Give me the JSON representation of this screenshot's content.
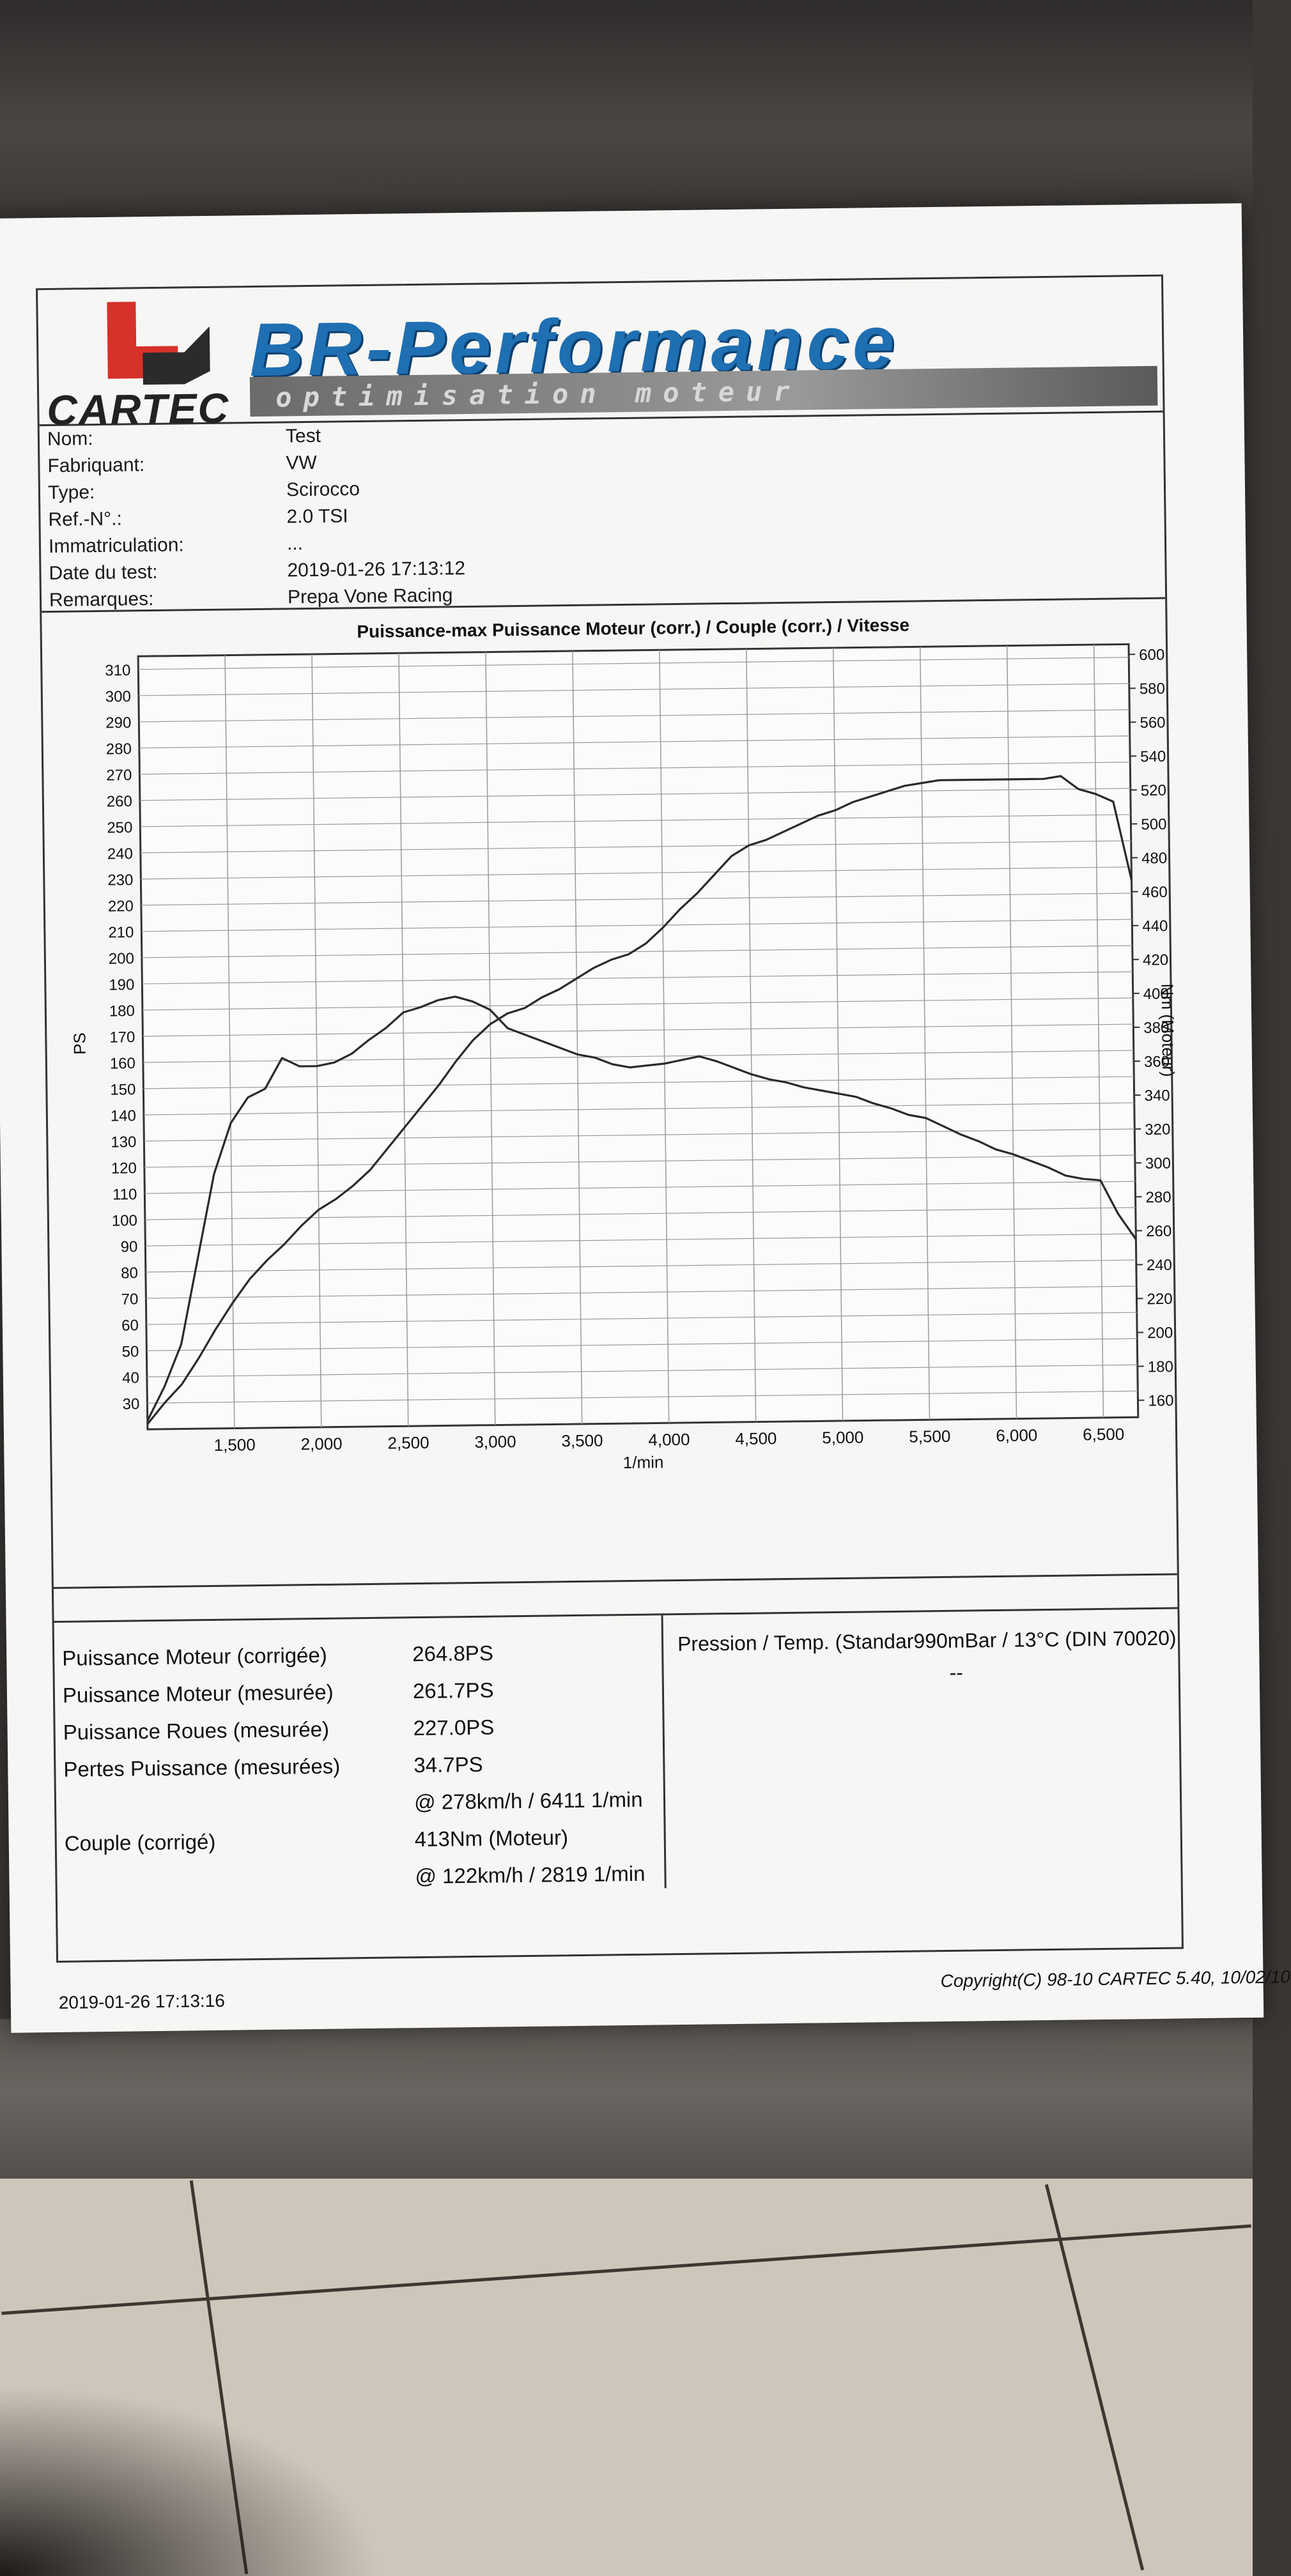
{
  "header": {
    "brand_left": "CARTEC",
    "brand_banner": "BR-Performance",
    "brand_sub": "optimisation moteur"
  },
  "info": [
    {
      "label": "Nom:",
      "value": "Test"
    },
    {
      "label": "Fabriquant:",
      "value": "VW"
    },
    {
      "label": "Type:",
      "value": "Scirocco"
    },
    {
      "label": "Ref.-N°.:",
      "value": "2.0 TSI"
    },
    {
      "label": "Immatriculation:",
      "value": "..."
    },
    {
      "label": "Date du test:",
      "value": "2019-01-26 17:13:12"
    },
    {
      "label": "Remarques:",
      "value": "Prepa Vone Racing"
    }
  ],
  "chart_data": {
    "type": "line",
    "title": "Puissance-max Puissance Moteur (corr.) / Couple (corr.) / Vitesse",
    "xlabel": "1/min",
    "ylabel_left": "PS",
    "ylabel_right": "Nm (Moteur)",
    "xlim": [
      1000,
      6700
    ],
    "ylim_left": [
      20,
      315
    ],
    "ylim_right": [
      150,
      606
    ],
    "x_ticks": [
      "1,500",
      "2,000",
      "2,500",
      "3,000",
      "3,500",
      "4,000",
      "4,500",
      "5,000",
      "5,500",
      "6,000",
      "6,500"
    ],
    "x_tick_values": [
      1500,
      2000,
      2500,
      3000,
      3500,
      4000,
      4500,
      5000,
      5500,
      6000,
      6500
    ],
    "y_left_ticks": [
      30,
      40,
      50,
      60,
      70,
      80,
      90,
      100,
      110,
      120,
      130,
      140,
      150,
      160,
      170,
      180,
      190,
      200,
      210,
      220,
      230,
      240,
      250,
      260,
      270,
      280,
      290,
      300,
      310
    ],
    "y_right_ticks": [
      160,
      180,
      200,
      220,
      240,
      260,
      280,
      300,
      320,
      340,
      360,
      380,
      400,
      420,
      440,
      460,
      480,
      500,
      520,
      540,
      560,
      580,
      600
    ],
    "grid": true,
    "series": [
      {
        "axis": "left",
        "x": [
          1000,
          1100,
          1200,
          1300,
          1400,
          1500,
          1600,
          1700,
          1800,
          1900,
          2000,
          2100,
          2200,
          2300,
          2400,
          2500,
          2600,
          2700,
          2800,
          2900,
          3000,
          3100,
          3200,
          3300,
          3400,
          3500,
          3600,
          3700,
          3800,
          3900,
          4000,
          4100,
          4200,
          4300,
          4400,
          4500,
          4600,
          4700,
          4800,
          4900,
          5000,
          5100,
          5200,
          5300,
          5400,
          5500,
          5600,
          5700,
          5800,
          5900,
          6000,
          6100,
          6200,
          6300,
          6400,
          6500,
          6600,
          6700
        ],
        "values": [
          22,
          30,
          37,
          47,
          58,
          68,
          77,
          84,
          90,
          97,
          103,
          107,
          112,
          118,
          126,
          134,
          142,
          150,
          159,
          167,
          173,
          177,
          179,
          183,
          186,
          190,
          194,
          197,
          199,
          203,
          209,
          216,
          222,
          229,
          236,
          240,
          242,
          245,
          248,
          251,
          253,
          256,
          258,
          260,
          262,
          263,
          264,
          264,
          264,
          264,
          264,
          264,
          264,
          265,
          260,
          258,
          255,
          225
        ]
      },
      {
        "axis": "right",
        "x": [
          1000,
          1100,
          1200,
          1300,
          1400,
          1500,
          1600,
          1700,
          1800,
          1900,
          2000,
          2100,
          2200,
          2300,
          2400,
          2500,
          2600,
          2700,
          2800,
          2900,
          3000,
          3100,
          3200,
          3300,
          3400,
          3500,
          3600,
          3700,
          3800,
          3900,
          4000,
          4100,
          4200,
          4300,
          4400,
          4500,
          4600,
          4700,
          4800,
          4900,
          5000,
          5100,
          5200,
          5300,
          5400,
          5500,
          5600,
          5700,
          5800,
          5900,
          6000,
          6100,
          6200,
          6300,
          6400,
          6500,
          6600,
          6700
        ],
        "values": [
          155,
          175,
          200,
          250,
          300,
          330,
          345,
          350,
          368,
          363,
          363,
          365,
          370,
          378,
          385,
          394,
          397,
          401,
          403,
          400,
          395,
          384,
          380,
          376,
          372,
          368,
          366,
          362,
          360,
          361,
          362,
          364,
          366,
          363,
          359,
          355,
          352,
          350,
          347,
          345,
          343,
          341,
          337,
          334,
          330,
          328,
          323,
          318,
          314,
          309,
          306,
          302,
          298,
          293,
          291,
          290,
          270,
          255
        ]
      }
    ]
  },
  "results": [
    {
      "label": "Puissance Moteur (corrigée)",
      "value": "264.8PS"
    },
    {
      "label": "Puissance Moteur (mesurée)",
      "value": "261.7PS"
    },
    {
      "label": "Puissance Roues (mesurée)",
      "value": "227.0PS"
    },
    {
      "label": "Pertes Puissance (mesurées)",
      "value": "34.7PS"
    },
    {
      "label": "",
      "value": "@ 278km/h / 6411 1/min"
    },
    {
      "label": "Couple (corrigé)",
      "value": "413Nm (Moteur)"
    },
    {
      "label": "",
      "value": "@ 122km/h / 2819 1/min"
    }
  ],
  "pressure": {
    "label": "Pression / Temp. (Standar990mBar / 13°C   (DIN 70020)",
    "value": "--"
  },
  "footer": {
    "date": "2019-01-26 17:13:16",
    "copyright": "Copyright(C) 98-10 CARTEC 5.40, 10/02/10"
  },
  "colors": {
    "curve": "#2a2a2a",
    "grid": "#9a9a9a",
    "banner_blue": "#1f6fb3",
    "cartec_red": "#d6312a"
  }
}
